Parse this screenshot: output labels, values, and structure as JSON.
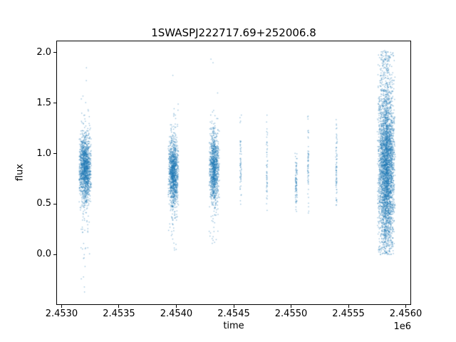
{
  "chart_data": {
    "type": "scatter",
    "title": "1SWASPJ222717.69+252006.8",
    "xlabel": "time",
    "ylabel": "flux",
    "x_offset_text": "1e6",
    "xlim": [
      2452960,
      2456040
    ],
    "ylim": [
      -0.49,
      2.11
    ],
    "xticks": [
      2453000,
      2453500,
      2454000,
      2454500,
      2455000,
      2455500,
      2456000
    ],
    "xtick_labels": [
      "2.4530",
      "2.4535",
      "2.4540",
      "2.4545",
      "2.4550",
      "2.4555",
      "2.4560"
    ],
    "yticks": [
      0.0,
      0.5,
      1.0,
      1.5,
      2.0
    ],
    "ytick_labels": [
      "0.0",
      "0.5",
      "1.0",
      "1.5",
      "2.0"
    ],
    "grid": false,
    "legend": "none",
    "marker": {
      "color": "#1f77b4",
      "alpha": 0.45,
      "size": 1.4
    },
    "spine_color": "#000000",
    "clusters": [
      {
        "x_center": 2453205,
        "x_halfwidth": 58,
        "n": 1500,
        "y_mean": 0.85,
        "y_sd": 0.16,
        "y_min": -0.05,
        "y_max": 1.55,
        "uniform_frac": 0.04,
        "outlier_n": 26,
        "outlier_y_min": -0.38,
        "outlier_y_max": 1.95
      },
      {
        "x_center": 2453975,
        "x_halfwidth": 48,
        "n": 1250,
        "y_mean": 0.8,
        "y_sd": 0.17,
        "y_min": 0.02,
        "y_max": 1.5,
        "uniform_frac": 0.04,
        "outlier_n": 18,
        "outlier_y_min": 0.05,
        "outlier_y_max": 1.8
      },
      {
        "x_center": 2454330,
        "x_halfwidth": 48,
        "n": 1100,
        "y_mean": 0.85,
        "y_sd": 0.17,
        "y_min": 0.05,
        "y_max": 1.5,
        "uniform_frac": 0.04,
        "outlier_n": 14,
        "outlier_y_min": 0.1,
        "outlier_y_max": 1.97
      },
      {
        "x_center": 2454560,
        "x_halfwidth": 8,
        "n": 60,
        "y_mean": 0.9,
        "y_sd": 0.24,
        "y_min": 0.45,
        "y_max": 1.45,
        "uniform_frac": 0.1,
        "outlier_n": 0,
        "outlier_y_min": 0,
        "outlier_y_max": 0
      },
      {
        "x_center": 2454790,
        "x_halfwidth": 6,
        "n": 55,
        "y_mean": 0.85,
        "y_sd": 0.25,
        "y_min": 0.4,
        "y_max": 1.42,
        "uniform_frac": 0.1,
        "outlier_n": 0,
        "outlier_y_min": 0,
        "outlier_y_max": 0
      },
      {
        "x_center": 2455045,
        "x_halfwidth": 10,
        "n": 90,
        "y_mean": 0.72,
        "y_sd": 0.14,
        "y_min": 0.42,
        "y_max": 1.02,
        "uniform_frac": 0.1,
        "outlier_n": 0,
        "outlier_y_min": 0,
        "outlier_y_max": 0
      },
      {
        "x_center": 2455150,
        "x_halfwidth": 6,
        "n": 60,
        "y_mean": 0.85,
        "y_sd": 0.25,
        "y_min": 0.4,
        "y_max": 1.42,
        "uniform_frac": 0.1,
        "outlier_n": 0,
        "outlier_y_min": 0,
        "outlier_y_max": 0
      },
      {
        "x_center": 2455395,
        "x_halfwidth": 8,
        "n": 75,
        "y_mean": 0.8,
        "y_sd": 0.22,
        "y_min": 0.45,
        "y_max": 1.35,
        "uniform_frac": 0.1,
        "outlier_n": 0,
        "outlier_y_min": 0,
        "outlier_y_max": 0
      },
      {
        "x_center": 2455830,
        "x_halfwidth": 80,
        "n": 3800,
        "y_mean": 0.85,
        "y_sd": 0.38,
        "y_min": 0.0,
        "y_max": 2.02,
        "uniform_frac": 0.25,
        "outlier_n": 0,
        "outlier_y_min": 0,
        "outlier_y_max": 0
      }
    ]
  }
}
